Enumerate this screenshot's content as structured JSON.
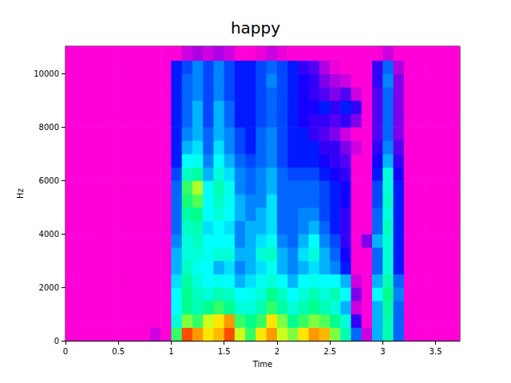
{
  "chart_data": {
    "type": "heatmap",
    "title": "happy",
    "x_label": "Time",
    "y_label": "Hz",
    "x": [
      0,
      0.1,
      0.2,
      0.3,
      0.4,
      0.5,
      0.6,
      0.7,
      0.8,
      0.9,
      1.0,
      1.1,
      1.2,
      1.3,
      1.4,
      1.5,
      1.6,
      1.7,
      1.8,
      1.9,
      2.0,
      2.1,
      2.2,
      2.3,
      2.4,
      2.5,
      2.6,
      2.7,
      2.8,
      2.9,
      3.0,
      3.1,
      3.2,
      3.3,
      3.4,
      3.5,
      3.6
    ],
    "y": [
      0,
      500,
      1000,
      1500,
      2000,
      2500,
      3000,
      3500,
      4000,
      4500,
      5000,
      5500,
      6000,
      6500,
      7000,
      7500,
      8000,
      8500,
      9000,
      9500,
      10000,
      10500
    ],
    "values": [
      [
        8,
        8,
        8,
        8,
        8,
        8,
        8,
        8,
        20,
        15,
        70,
        95,
        90,
        85,
        88,
        95,
        80,
        70,
        85,
        90,
        80,
        75,
        85,
        90,
        88,
        75,
        60,
        40,
        20,
        45,
        60,
        40,
        8,
        8,
        8,
        8,
        8
      ],
      [
        5,
        5,
        5,
        5,
        5,
        5,
        5,
        5,
        5,
        5,
        55,
        75,
        70,
        80,
        85,
        90,
        70,
        65,
        70,
        85,
        75,
        65,
        70,
        75,
        72,
        65,
        55,
        30,
        15,
        45,
        60,
        40,
        5,
        5,
        5,
        5,
        5
      ],
      [
        5,
        5,
        5,
        5,
        5,
        5,
        5,
        5,
        5,
        5,
        50,
        65,
        60,
        65,
        70,
        65,
        55,
        55,
        60,
        70,
        62,
        55,
        60,
        65,
        60,
        55,
        45,
        20,
        10,
        45,
        62,
        40,
        5,
        5,
        5,
        5,
        5
      ],
      [
        5,
        5,
        5,
        5,
        5,
        5,
        5,
        5,
        5,
        5,
        50,
        65,
        58,
        55,
        60,
        58,
        50,
        52,
        55,
        65,
        58,
        50,
        55,
        60,
        55,
        60,
        50,
        25,
        10,
        50,
        65,
        42,
        5,
        5,
        5,
        5,
        5
      ],
      [
        5,
        5,
        5,
        5,
        5,
        5,
        5,
        5,
        5,
        5,
        48,
        62,
        55,
        50,
        52,
        50,
        45,
        48,
        52,
        55,
        50,
        45,
        50,
        52,
        50,
        50,
        45,
        20,
        10,
        45,
        60,
        40,
        5,
        5,
        5,
        5,
        5
      ],
      [
        5,
        5,
        5,
        5,
        5,
        5,
        5,
        5,
        5,
        5,
        45,
        58,
        52,
        50,
        45,
        48,
        42,
        45,
        48,
        52,
        45,
        42,
        45,
        48,
        45,
        42,
        35,
        15,
        8,
        40,
        55,
        35,
        5,
        5,
        5,
        5,
        5
      ],
      [
        5,
        5,
        5,
        5,
        5,
        5,
        5,
        5,
        5,
        5,
        45,
        55,
        55,
        52,
        55,
        55,
        45,
        45,
        55,
        58,
        45,
        42,
        48,
        55,
        45,
        40,
        32,
        12,
        8,
        40,
        55,
        35,
        5,
        5,
        5,
        5,
        5
      ],
      [
        5,
        5,
        5,
        5,
        5,
        5,
        5,
        5,
        5,
        5,
        42,
        55,
        58,
        50,
        50,
        50,
        42,
        45,
        48,
        52,
        42,
        40,
        45,
        50,
        42,
        38,
        30,
        12,
        25,
        45,
        55,
        35,
        5,
        5,
        5,
        5,
        5
      ],
      [
        5,
        5,
        5,
        5,
        5,
        5,
        5,
        5,
        5,
        5,
        40,
        58,
        60,
        48,
        50,
        48,
        42,
        45,
        45,
        48,
        40,
        40,
        42,
        45,
        40,
        35,
        30,
        12,
        10,
        40,
        58,
        35,
        5,
        5,
        5,
        5,
        5
      ],
      [
        5,
        5,
        5,
        5,
        5,
        5,
        5,
        5,
        5,
        5,
        40,
        62,
        65,
        50,
        55,
        50,
        45,
        42,
        45,
        48,
        40,
        40,
        42,
        42,
        38,
        35,
        30,
        15,
        10,
        40,
        55,
        35,
        5,
        5,
        5,
        5,
        5
      ],
      [
        5,
        5,
        5,
        5,
        5,
        5,
        5,
        5,
        5,
        5,
        40,
        68,
        72,
        50,
        58,
        52,
        45,
        42,
        42,
        48,
        40,
        40,
        40,
        40,
        38,
        35,
        32,
        15,
        10,
        38,
        58,
        35,
        5,
        5,
        5,
        5,
        5
      ],
      [
        5,
        5,
        5,
        5,
        5,
        5,
        5,
        5,
        5,
        5,
        40,
        70,
        78,
        50,
        60,
        52,
        42,
        40,
        42,
        45,
        40,
        40,
        40,
        40,
        38,
        35,
        32,
        15,
        10,
        38,
        55,
        35,
        5,
        5,
        5,
        5,
        5
      ],
      [
        5,
        5,
        5,
        5,
        5,
        5,
        5,
        5,
        5,
        5,
        38,
        58,
        62,
        45,
        55,
        48,
        42,
        40,
        42,
        45,
        40,
        38,
        38,
        38,
        35,
        32,
        30,
        15,
        10,
        35,
        55,
        32,
        5,
        5,
        5,
        5,
        5
      ],
      [
        5,
        5,
        5,
        5,
        5,
        5,
        5,
        5,
        5,
        5,
        35,
        50,
        52,
        42,
        50,
        45,
        40,
        38,
        40,
        42,
        38,
        35,
        35,
        35,
        32,
        30,
        28,
        15,
        10,
        32,
        45,
        30,
        5,
        5,
        5,
        5,
        5
      ],
      [
        5,
        5,
        5,
        5,
        5,
        5,
        5,
        5,
        5,
        5,
        35,
        45,
        48,
        40,
        48,
        42,
        38,
        35,
        40,
        42,
        38,
        35,
        35,
        35,
        30,
        30,
        25,
        20,
        12,
        30,
        42,
        28,
        5,
        5,
        5,
        5,
        5
      ],
      [
        5,
        5,
        5,
        5,
        5,
        5,
        5,
        5,
        5,
        5,
        35,
        42,
        45,
        40,
        45,
        42,
        38,
        35,
        40,
        42,
        38,
        35,
        35,
        30,
        28,
        25,
        20,
        12,
        10,
        28,
        40,
        25,
        5,
        5,
        5,
        5,
        5
      ],
      [
        5,
        5,
        5,
        5,
        5,
        5,
        5,
        5,
        5,
        5,
        35,
        40,
        45,
        38,
        45,
        40,
        35,
        35,
        38,
        40,
        38,
        35,
        32,
        30,
        30,
        28,
        30,
        25,
        15,
        28,
        40,
        25,
        5,
        5,
        5,
        5,
        5
      ],
      [
        5,
        5,
        5,
        5,
        5,
        5,
        5,
        5,
        5,
        5,
        35,
        40,
        45,
        38,
        45,
        40,
        35,
        35,
        38,
        40,
        38,
        35,
        32,
        32,
        35,
        30,
        35,
        30,
        15,
        28,
        40,
        25,
        5,
        5,
        5,
        5,
        5
      ],
      [
        5,
        5,
        5,
        5,
        5,
        5,
        5,
        5,
        5,
        5,
        35,
        40,
        42,
        38,
        42,
        38,
        35,
        35,
        38,
        40,
        38,
        35,
        32,
        30,
        28,
        25,
        28,
        20,
        10,
        28,
        40,
        25,
        5,
        5,
        5,
        5,
        5
      ],
      [
        5,
        5,
        5,
        5,
        5,
        5,
        5,
        5,
        5,
        5,
        35,
        40,
        42,
        38,
        42,
        38,
        35,
        35,
        38,
        42,
        38,
        35,
        32,
        30,
        25,
        22,
        20,
        12,
        8,
        30,
        42,
        25,
        5,
        5,
        5,
        5,
        5
      ],
      [
        5,
        5,
        5,
        5,
        5,
        5,
        5,
        5,
        5,
        5,
        35,
        38,
        42,
        38,
        42,
        38,
        35,
        35,
        38,
        40,
        38,
        35,
        30,
        28,
        22,
        18,
        12,
        8,
        8,
        30,
        40,
        22,
        5,
        5,
        5,
        5,
        5
      ],
      [
        5,
        5,
        5,
        5,
        5,
        5,
        5,
        5,
        5,
        5,
        15,
        20,
        22,
        20,
        22,
        20,
        15,
        15,
        18,
        20,
        18,
        15,
        12,
        10,
        8,
        8,
        8,
        5,
        5,
        12,
        20,
        10,
        5,
        5,
        5,
        5,
        5
      ]
    ],
    "color_range": [
      0,
      100
    ],
    "xlim": [
      0,
      3.73
    ],
    "xticks": [
      0,
      0.5,
      1,
      1.5,
      2,
      2.5,
      3,
      3.5
    ],
    "ylim": [
      0,
      11025
    ],
    "yticks": [
      0,
      2000,
      4000,
      6000,
      8000,
      10000
    ],
    "grid": false
  }
}
